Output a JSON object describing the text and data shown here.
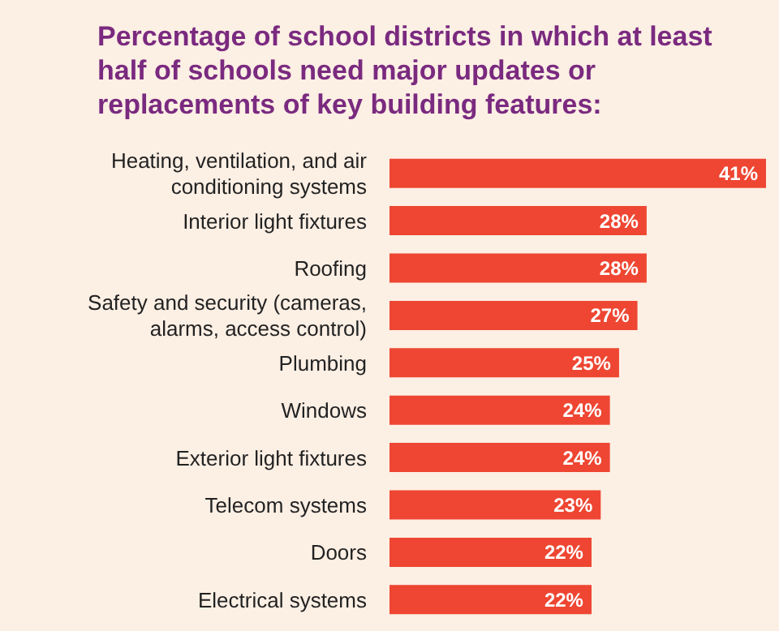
{
  "chart_data": {
    "type": "bar",
    "orientation": "horizontal",
    "title": "Percentage of school districts in which at least half of schools need major updates or replacements of key building features:",
    "categories": [
      "Heating, ventilation, and air conditioning systems",
      "Interior light fixtures",
      "Roofing",
      "Safety and security (cameras, alarms, access control)",
      "Plumbing",
      "Windows",
      "Exterior light fixtures",
      "Telecom systems",
      "Doors",
      "Electrical systems"
    ],
    "values": [
      41,
      28,
      28,
      27,
      25,
      24,
      24,
      23,
      22,
      22
    ],
    "value_labels": [
      "41%",
      "28%",
      "28%",
      "27%",
      "25%",
      "24%",
      "24%",
      "23%",
      "22%",
      "22%"
    ],
    "color": "#ee4632"
  }
}
